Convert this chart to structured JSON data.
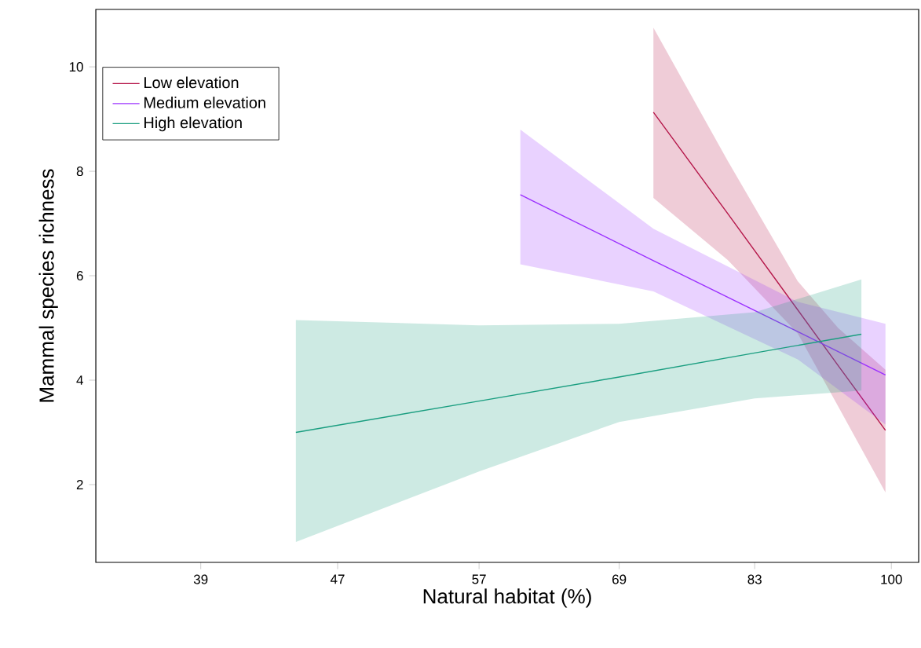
{
  "chart_data": {
    "type": "line",
    "xlabel": "Natural habitat (%)",
    "ylabel": "Mammal species richness",
    "log": "x",
    "xlim": [
      33.8,
      103.8
    ],
    "ylim": [
      0.51,
      11.1
    ],
    "xticks": [
      39,
      47,
      57,
      69,
      83,
      100
    ],
    "yticks": [
      2,
      4,
      6,
      8,
      10
    ],
    "grid": false,
    "legend": "top left",
    "marker": "none",
    "line_style": "solid",
    "series": [
      {
        "name": "Low elevation",
        "color": "#b5174a",
        "x": [
          72.3,
          80,
          88,
          93,
          99.2
        ],
        "values": [
          9.13,
          7.19,
          5.35,
          4.28,
          3.04
        ],
        "lower": [
          7.49,
          6.3,
          4.9,
          3.5,
          1.85
        ],
        "upper": [
          10.75,
          8.2,
          5.9,
          5.0,
          4.2
        ]
      },
      {
        "name": "Medium elevation",
        "color": "#9b30ff",
        "x": [
          60.3,
          72.3,
          88,
          99.2
        ],
        "values": [
          7.55,
          6.29,
          4.93,
          4.1
        ],
        "lower": [
          6.22,
          5.7,
          4.4,
          3.15
        ],
        "upper": [
          8.8,
          6.9,
          5.5,
          5.08
        ]
      },
      {
        "name": "High elevation",
        "color": "#1a9e80",
        "x": [
          44.4,
          57,
          69,
          83,
          96.0
        ],
        "values": [
          3.0,
          3.6,
          4.06,
          4.52,
          4.88
        ],
        "lower": [
          0.9,
          2.25,
          3.2,
          3.65,
          3.8
        ],
        "upper": [
          5.15,
          5.05,
          5.08,
          5.3,
          5.93
        ]
      }
    ]
  }
}
